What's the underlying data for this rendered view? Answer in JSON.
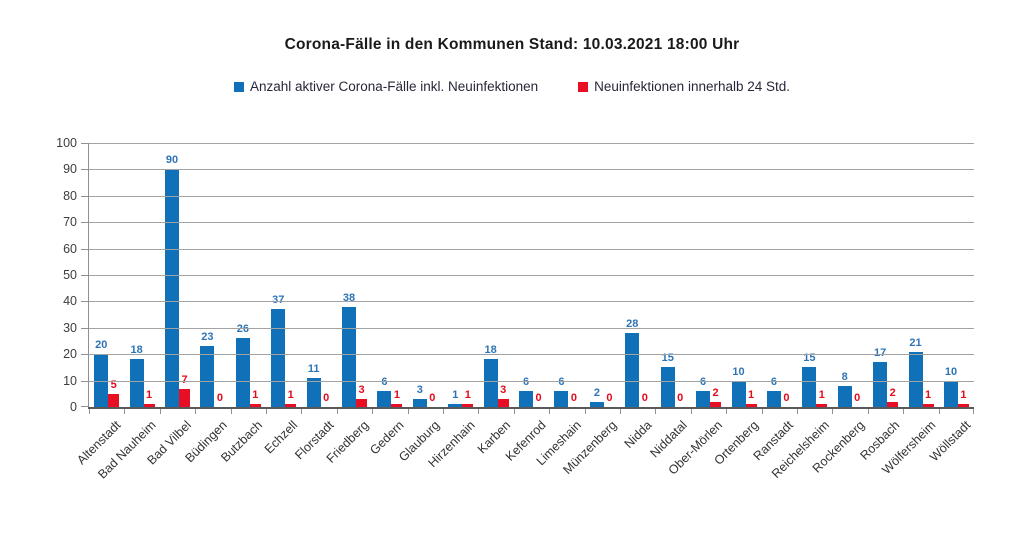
{
  "chart_data": {
    "type": "bar",
    "title": "Corona-Fälle in den Kommunen Stand: 10.03.2021 18:00 Uhr",
    "categories": [
      "Altenstadt",
      "Bad Nauheim",
      "Bad Vilbel",
      "Büdingen",
      "Butzbach",
      "Echzell",
      "Florstadt",
      "Friedberg",
      "Gedern",
      "Glauburg",
      "Hirzenhain",
      "Karben",
      "Kefenrod",
      "Limeshain",
      "Münzenberg",
      "Nidda",
      "Niddatal",
      "Ober-Mörlen",
      "Ortenberg",
      "Ranstadt",
      "Reichelsheim",
      "Rockenberg",
      "Rosbach",
      "Wölfersheim",
      "Wöllstadt"
    ],
    "series": [
      {
        "name": "Anzahl aktiver Corona-Fälle inkl. Neuinfektionen",
        "color": "#1070b8",
        "label_color": "#2e74b5",
        "values": [
          20,
          18,
          90,
          23,
          26,
          37,
          11,
          38,
          6,
          3,
          1,
          18,
          6,
          6,
          2,
          28,
          15,
          6,
          10,
          6,
          15,
          8,
          17,
          21,
          10
        ]
      },
      {
        "name": "Neuinfektionen innerhalb 24 Std.",
        "color": "#e80e23",
        "label_color": "#e30b1c",
        "values": [
          5,
          1,
          7,
          0,
          1,
          1,
          0,
          3,
          1,
          0,
          1,
          3,
          0,
          0,
          0,
          0,
          0,
          2,
          1,
          0,
          1,
          0,
          2,
          1,
          1
        ]
      }
    ],
    "xlabel": "",
    "ylabel": "",
    "ylim": [
      0,
      100
    ],
    "yticks": [
      0,
      10,
      20,
      30,
      40,
      50,
      60,
      70,
      80,
      90,
      100
    ],
    "grid": true,
    "legend_position": "top"
  }
}
